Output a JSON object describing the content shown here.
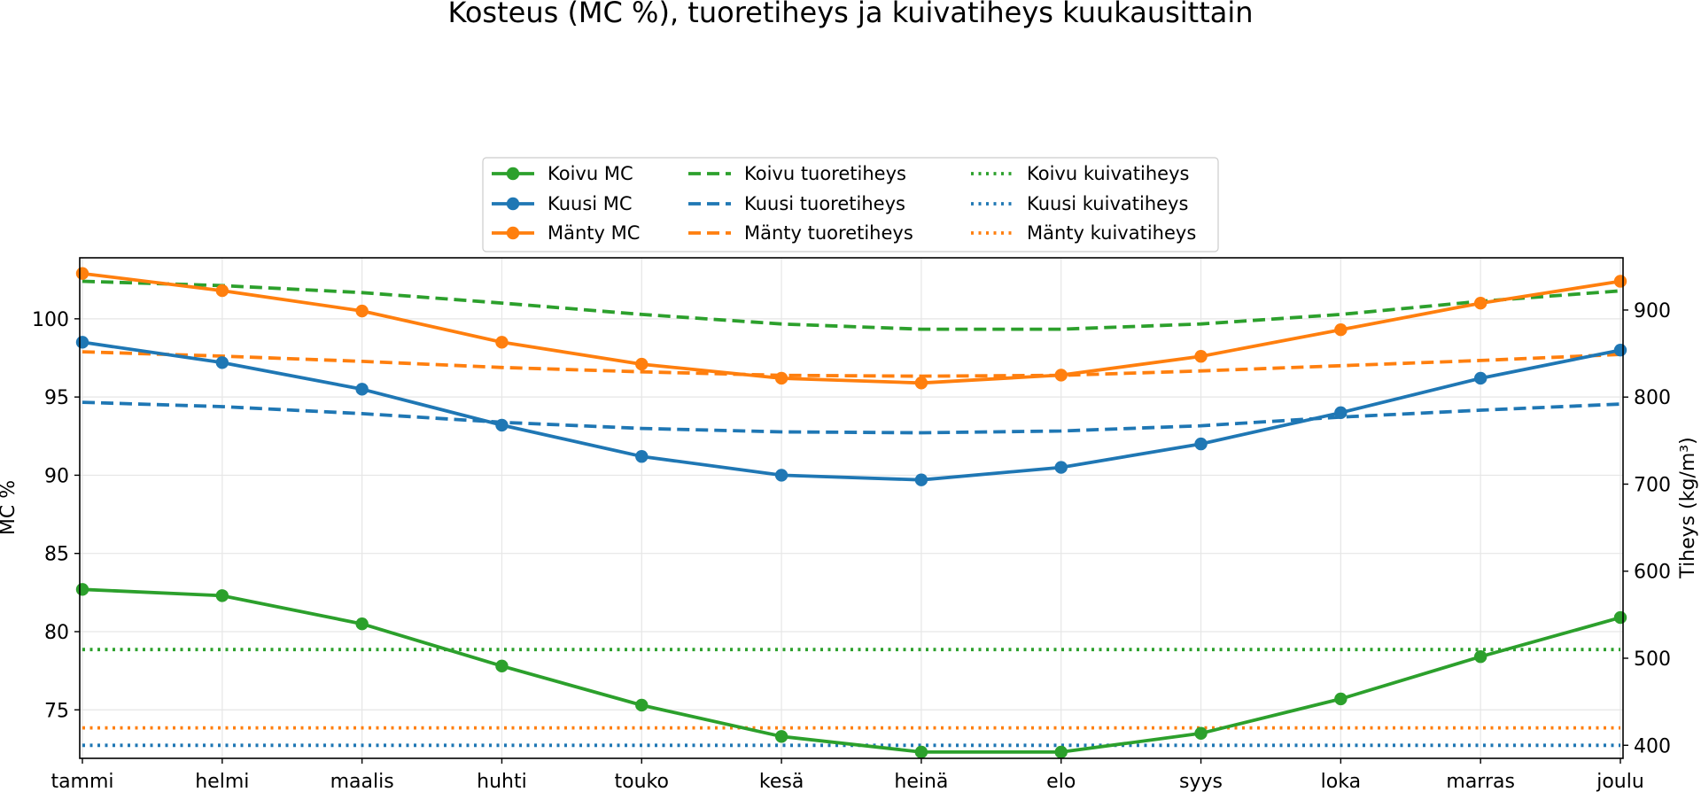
{
  "chart_data": {
    "type": "line",
    "title": "Kosteus (MC %), tuoretiheys ja kuivatiheys kuukausittain",
    "xlabel": "",
    "ylabel": "MC %",
    "y2label": "Tiheys (kg/m³)",
    "categories": [
      "tammi",
      "helmi",
      "maalis",
      "huhti",
      "touko",
      "kesä",
      "heinä",
      "elo",
      "syys",
      "loka",
      "marras",
      "joulu"
    ],
    "ylim": [
      71.9,
      103.9
    ],
    "y2lim": [
      385,
      960
    ],
    "yticks": [
      75,
      80,
      85,
      90,
      95,
      100
    ],
    "y2ticks": [
      400,
      500,
      600,
      700,
      800,
      900
    ],
    "grid": true,
    "legend_position": "top-center",
    "series": [
      {
        "name": "Koivu MC",
        "axis": "left",
        "color": "#2ca02c",
        "style": "solid",
        "marker": true,
        "values": [
          82.7,
          82.3,
          80.5,
          77.8,
          75.3,
          73.3,
          72.3,
          72.3,
          73.5,
          75.7,
          78.4,
          80.9
        ]
      },
      {
        "name": "Kuusi MC",
        "axis": "left",
        "color": "#1f77b4",
        "style": "solid",
        "marker": true,
        "values": [
          98.5,
          97.2,
          95.5,
          93.2,
          91.2,
          90.0,
          89.7,
          90.5,
          92.0,
          94.0,
          96.2,
          98.0
        ]
      },
      {
        "name": "Mänty MC",
        "axis": "left",
        "color": "#ff7f0e",
        "style": "solid",
        "marker": true,
        "values": [
          102.9,
          101.8,
          100.5,
          98.5,
          97.1,
          96.2,
          95.9,
          96.4,
          97.6,
          99.3,
          101.0,
          102.4
        ]
      },
      {
        "name": "Koivu tuoretiheys",
        "axis": "right",
        "color": "#2ca02c",
        "style": "dashed",
        "marker": false,
        "values": [
          933,
          928,
          920,
          908,
          895,
          884,
          878,
          878,
          884,
          895,
          910,
          922
        ]
      },
      {
        "name": "Kuusi tuoretiheys",
        "axis": "right",
        "color": "#1f77b4",
        "style": "dashed",
        "marker": false,
        "values": [
          794,
          789,
          781,
          771,
          764,
          760,
          759,
          761,
          767,
          777,
          785,
          792
        ]
      },
      {
        "name": "Mänty tuoretiheys",
        "axis": "right",
        "color": "#ff7f0e",
        "style": "dashed",
        "marker": false,
        "values": [
          852,
          847,
          841,
          834,
          829,
          825,
          824,
          825,
          830,
          836,
          842,
          849
        ]
      },
      {
        "name": "Koivu kuivatiheys",
        "axis": "right",
        "color": "#2ca02c",
        "style": "dotted",
        "marker": false,
        "values": [
          510,
          510,
          510,
          510,
          510,
          510,
          510,
          510,
          510,
          510,
          510,
          510
        ]
      },
      {
        "name": "Kuusi kuivatiheys",
        "axis": "right",
        "color": "#1f77b4",
        "style": "dotted",
        "marker": false,
        "values": [
          400,
          400,
          400,
          400,
          400,
          400,
          400,
          400,
          400,
          400,
          400,
          400
        ]
      },
      {
        "name": "Mänty kuivatiheys",
        "axis": "right",
        "color": "#ff7f0e",
        "style": "dotted",
        "marker": false,
        "values": [
          420,
          420,
          420,
          420,
          420,
          420,
          420,
          420,
          420,
          420,
          420,
          420
        ]
      }
    ]
  }
}
